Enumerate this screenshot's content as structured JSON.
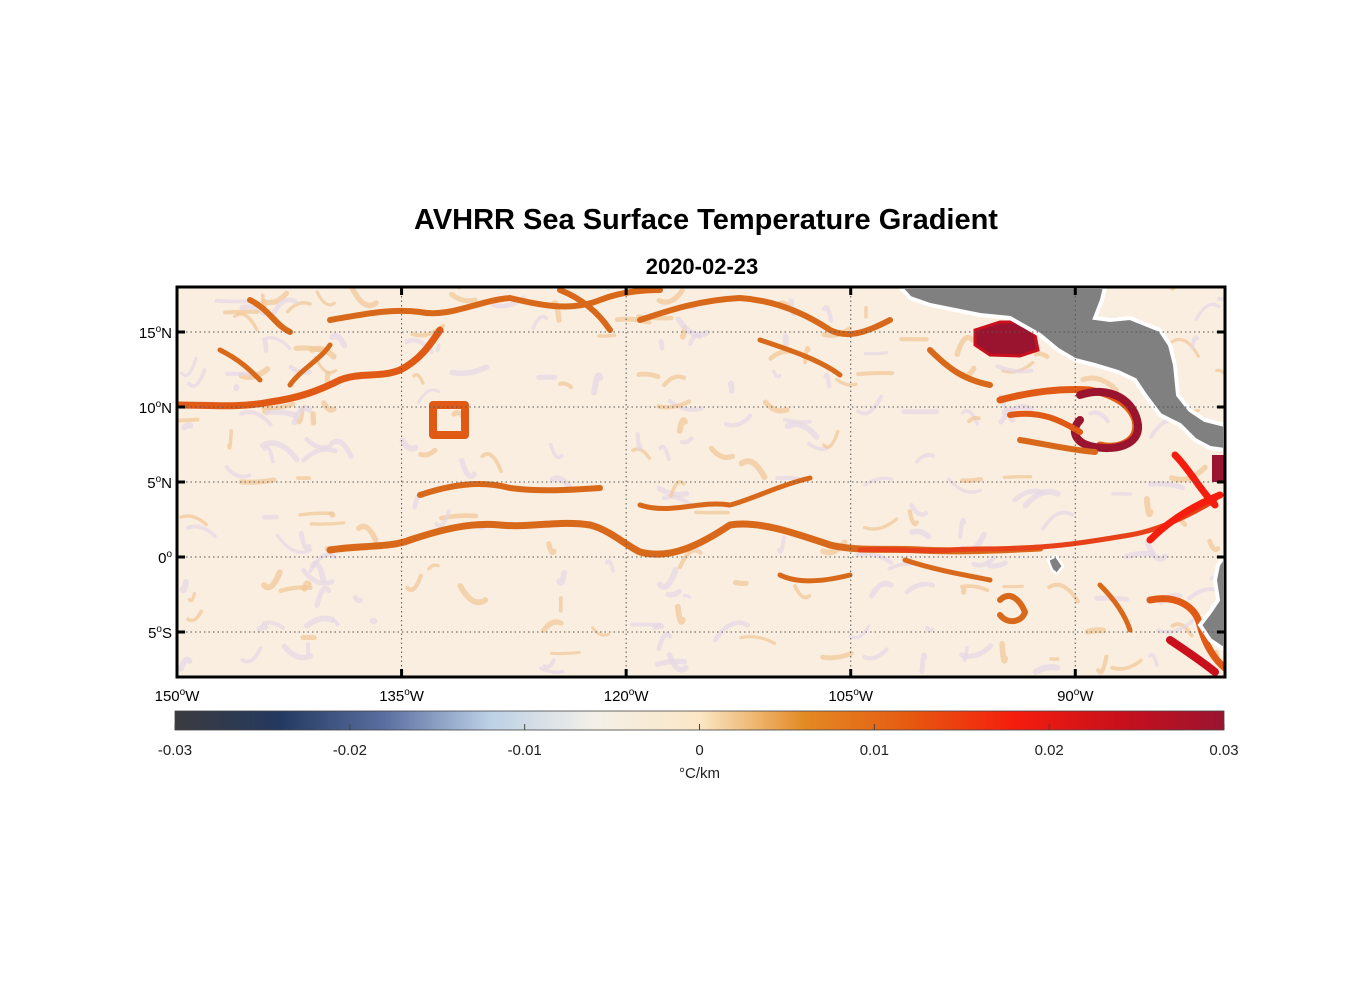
{
  "title": "AVHRR Sea Surface Temperature Gradient",
  "subtitle": "2020-02-23",
  "map": {
    "lon_range": [
      -150,
      -80
    ],
    "lat_range": [
      -8,
      18
    ],
    "lat_ticks": [
      {
        "value": 15,
        "num": "15",
        "sup": "o",
        "hem": "N"
      },
      {
        "value": 10,
        "num": "10",
        "sup": "o",
        "hem": "N"
      },
      {
        "value": 5,
        "num": "5",
        "sup": "o",
        "hem": "N"
      },
      {
        "value": 0,
        "num": "0",
        "sup": "o",
        "hem": ""
      },
      {
        "value": -5,
        "num": "5",
        "sup": "o",
        "hem": "S"
      }
    ],
    "lon_ticks": [
      {
        "value": -150,
        "num": "150",
        "sup": "o",
        "hem": "W"
      },
      {
        "value": -135,
        "num": "135",
        "sup": "o",
        "hem": "W"
      },
      {
        "value": -120,
        "num": "120",
        "sup": "o",
        "hem": "W"
      },
      {
        "value": -105,
        "num": "105",
        "sup": "o",
        "hem": "W"
      },
      {
        "value": -90,
        "num": "90",
        "sup": "o",
        "hem": "W"
      }
    ],
    "grid": "dotted",
    "land_color": "#808080",
    "colormap": "balance"
  },
  "colorbar": {
    "range": [
      -0.03,
      0.03
    ],
    "ticks": [
      {
        "value": -0.03,
        "label": "-0.03"
      },
      {
        "value": -0.02,
        "label": "-0.02"
      },
      {
        "value": -0.01,
        "label": "-0.01"
      },
      {
        "value": 0,
        "label": "0"
      },
      {
        "value": 0.01,
        "label": "0.01"
      },
      {
        "value": 0.02,
        "label": "0.02"
      },
      {
        "value": 0.03,
        "label": "0.03"
      }
    ],
    "unit": "°C/km",
    "stops": [
      "#3b3b3f",
      "#24395f",
      "#5a6fa0",
      "#bcd0e6",
      "#f4f0e8",
      "#fbe7c6",
      "#e38a24",
      "#e65a10",
      "#f51d0d",
      "#c9101c",
      "#9a1430"
    ]
  }
}
